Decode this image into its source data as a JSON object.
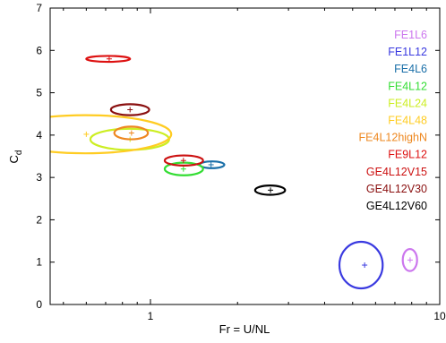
{
  "chart_data": {
    "type": "scatter",
    "title": "",
    "xlabel": "Fr = U/NL",
    "ylabel_main": "C",
    "ylabel_sub": "d",
    "xscale": "log",
    "xlim": [
      0.45,
      10
    ],
    "ylim": [
      0,
      7
    ],
    "xticks": [
      1,
      10
    ],
    "xtick_labels": [
      "1",
      "10"
    ],
    "yticks": [
      0,
      1,
      2,
      3,
      4,
      5,
      6,
      7
    ],
    "ytick_labels": [
      "0",
      "1",
      "2",
      "3",
      "4",
      "5",
      "6",
      "7"
    ],
    "grid": false,
    "legend_position": "top-right",
    "marker": "+",
    "series": [
      {
        "name": "FE1L6",
        "color": "#cc77ee",
        "x": 7.9,
        "y": 1.05,
        "x_err_lo": 7.45,
        "x_err_hi": 8.35,
        "y_err": 0.26
      },
      {
        "name": "FE1L12",
        "color": "#3a3ae0",
        "x": 5.5,
        "y": 0.93,
        "x_err_lo": 4.5,
        "x_err_hi": 6.35,
        "y_err": 0.55
      },
      {
        "name": "FE4L6",
        "color": "#1a6fa8",
        "x": 1.62,
        "y": 3.3,
        "x_err_lo": 1.48,
        "x_err_hi": 1.8,
        "y_err": 0.08
      },
      {
        "name": "FE4L12",
        "color": "#33dd33",
        "x": 1.3,
        "y": 3.2,
        "x_err_lo": 1.12,
        "x_err_hi": 1.52,
        "y_err": 0.15
      },
      {
        "name": "FE4L24",
        "color": "#ccee22",
        "x": 0.85,
        "y": 3.9,
        "x_err_lo": 0.62,
        "x_err_hi": 1.16,
        "y_err": 0.25
      },
      {
        "name": "FE4L48",
        "color": "#ffcc22",
        "x": 0.6,
        "y": 4.02,
        "x_err_lo": 0.3,
        "x_err_hi": 1.18,
        "y_err": 0.45
      },
      {
        "name": "FE4L12highN",
        "color": "#ee8820",
        "x": 0.86,
        "y": 4.05,
        "x_err_lo": 0.75,
        "x_err_hi": 0.98,
        "y_err": 0.15
      },
      {
        "name": "FE9L12",
        "color": "#dd1111",
        "x": 0.72,
        "y": 5.8,
        "x_err_lo": 0.6,
        "x_err_hi": 0.85,
        "y_err": 0.07
      },
      {
        "name": "GE4L12V15",
        "color": "#cc1111",
        "x": 1.3,
        "y": 3.4,
        "x_err_lo": 1.12,
        "x_err_hi": 1.52,
        "y_err": 0.12
      },
      {
        "name": "GE4L12V30",
        "color": "#8a1010",
        "x": 0.85,
        "y": 4.6,
        "x_err_lo": 0.73,
        "x_err_hi": 0.99,
        "y_err": 0.13
      },
      {
        "name": "GE4L12V60",
        "color": "#000000",
        "x": 2.6,
        "y": 2.7,
        "x_err_lo": 2.3,
        "x_err_hi": 2.92,
        "y_err": 0.11
      }
    ]
  }
}
